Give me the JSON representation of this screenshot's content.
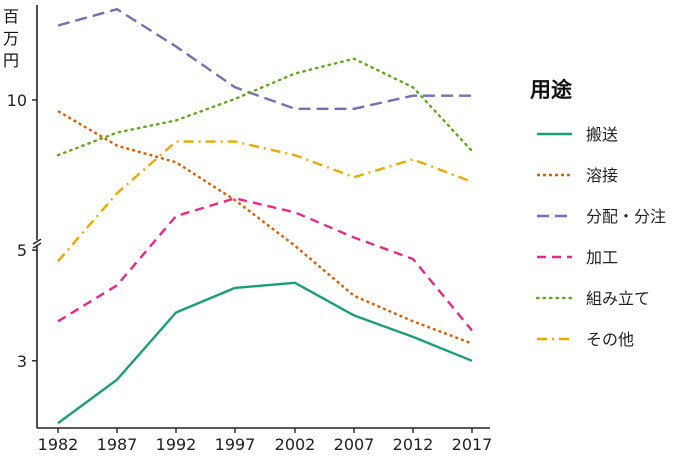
{
  "chart_data": {
    "type": "line",
    "ylabel": "百万円",
    "y_scale": "log",
    "ylim": [
      2.2,
      15.5
    ],
    "y_ticks": [
      3,
      5,
      10
    ],
    "x": [
      1982,
      1987,
      1992,
      1997,
      2002,
      2007,
      2012,
      2017
    ],
    "x_tick_labels": [
      "1982",
      "1987",
      "1992",
      "1997",
      "2002",
      "2007",
      "2012",
      "2017"
    ],
    "legend_title": "用途",
    "legend_position": "right",
    "series": [
      {
        "name": "搬送",
        "values": [
          2.25,
          2.75,
          3.75,
          4.2,
          4.3,
          3.7,
          3.35,
          3.0
        ],
        "color": "#1b9e77",
        "dash": "solid"
      },
      {
        "name": "溶接",
        "values": [
          9.5,
          8.1,
          7.5,
          6.3,
          5.1,
          4.05,
          3.6,
          3.25
        ],
        "color": "#d95f02",
        "dash": "dotted-short"
      },
      {
        "name": "分配・分注",
        "values": [
          14.1,
          15.2,
          12.8,
          10.6,
          9.6,
          9.6,
          10.2,
          10.2
        ],
        "color": "#7570b3",
        "dash": "long-dash"
      },
      {
        "name": "加工",
        "values": [
          3.6,
          4.25,
          5.85,
          6.35,
          5.95,
          5.3,
          4.8,
          3.45
        ],
        "color": "#e7298a",
        "dash": "dash"
      },
      {
        "name": "組み立て",
        "values": [
          7.75,
          8.6,
          9.1,
          10.05,
          11.3,
          12.1,
          10.6,
          7.9
        ],
        "color": "#66a61e",
        "dash": "dotted"
      },
      {
        "name": "その他",
        "values": [
          4.75,
          6.5,
          8.25,
          8.25,
          7.75,
          7.0,
          7.6,
          6.85
        ],
        "color": "#e6ab02",
        "dash": "dash-dot"
      }
    ]
  }
}
